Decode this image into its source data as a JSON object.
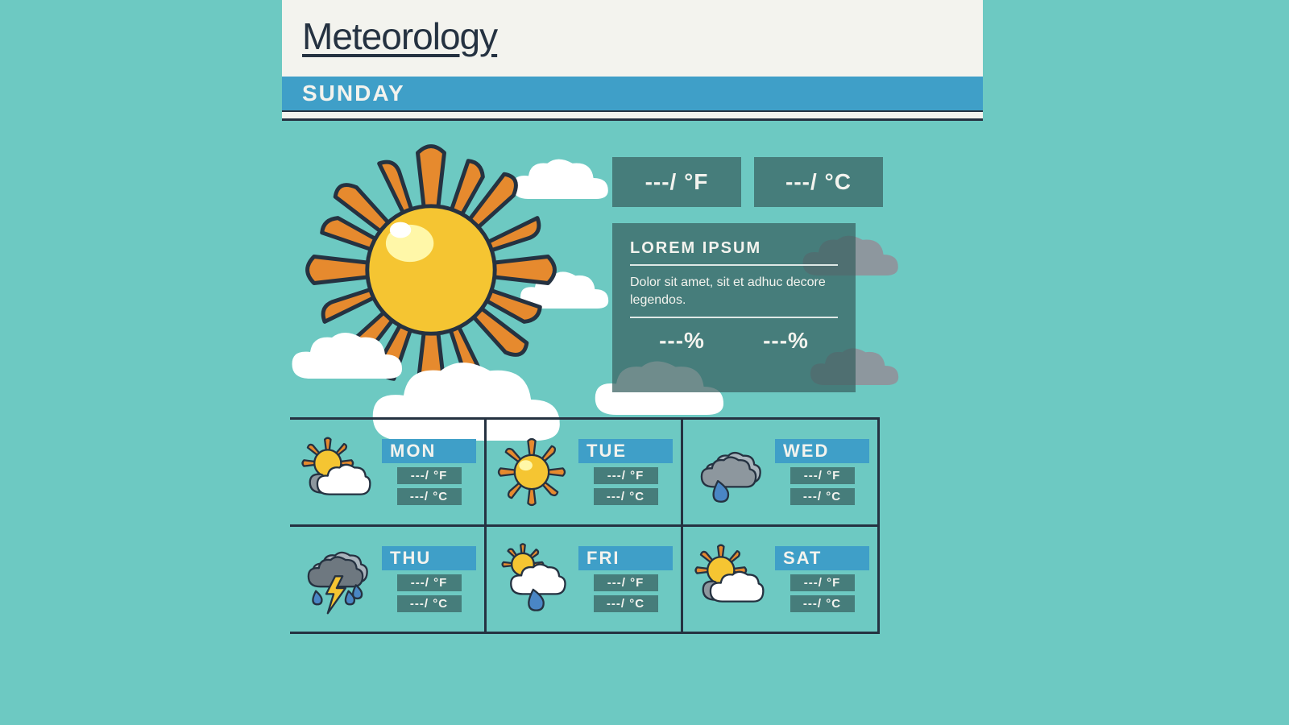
{
  "colors": {
    "background": "#6dc9c2",
    "header_bg": "#f3f3ee",
    "accent": "#3f9fc8",
    "dark": "#253241",
    "panel": "rgba(55,95,95,0.72)",
    "text_light": "#f3f3ee",
    "sun_fill": "#f5c532",
    "sun_rays": "#e68a2e",
    "sun_highlight": "#fff7a8",
    "cloud_white": "#ffffff",
    "cloud_grey": "#8d979e",
    "cloud_darkgrey": "#6e7880",
    "drop_blue": "#4a86c5",
    "bolt": "#f5c532"
  },
  "title": "Meteorology",
  "current_day": "SUNDAY",
  "temp": {
    "fahrenheit": "---/ °F",
    "celsius": "---/ °C"
  },
  "description": {
    "heading": "LOREM IPSUM",
    "body": "Dolor sit amet, sit et adhuc decore legendos.",
    "pct1": "---%",
    "pct2": "---%"
  },
  "forecast": [
    {
      "day": "MON",
      "icon": "partly",
      "f": "---/ °F",
      "c": "---/ °C"
    },
    {
      "day": "TUE",
      "icon": "sunny",
      "f": "---/ °F",
      "c": "---/ °C"
    },
    {
      "day": "WED",
      "icon": "rain",
      "f": "---/ °F",
      "c": "---/ °C"
    },
    {
      "day": "THU",
      "icon": "storm",
      "f": "---/ °F",
      "c": "---/ °C"
    },
    {
      "day": "FRI",
      "icon": "shower",
      "f": "---/ °F",
      "c": "---/ °C"
    },
    {
      "day": "SAT",
      "icon": "partly",
      "f": "---/ °F",
      "c": "---/ °C"
    }
  ]
}
